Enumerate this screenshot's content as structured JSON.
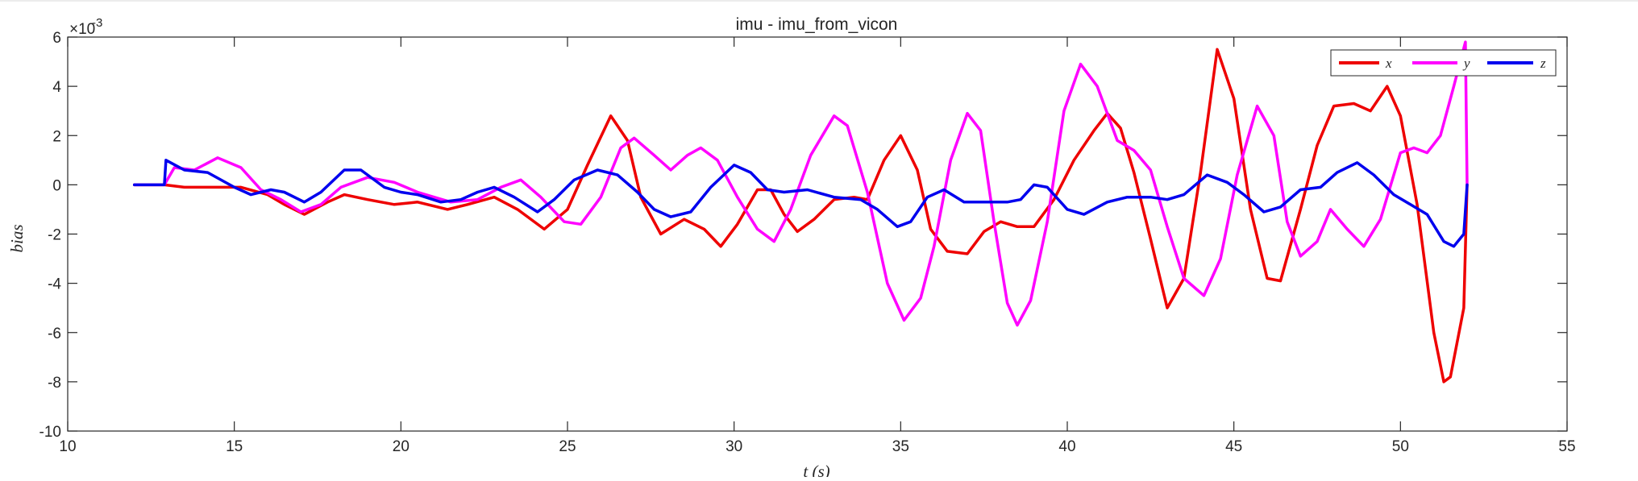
{
  "chart_data": {
    "type": "line",
    "title": "imu - imu_from_vicon",
    "xlabel": "t (s)",
    "ylabel": "bias",
    "y_exponent_label": "×10",
    "y_exponent_power": "-3",
    "xlim": [
      10,
      55
    ],
    "ylim": [
      -10,
      6
    ],
    "y_scale_factor": 0.001,
    "x_ticks": [
      10,
      15,
      20,
      25,
      30,
      35,
      40,
      45,
      50,
      55
    ],
    "y_ticks": [
      -10,
      -8,
      -6,
      -4,
      -2,
      0,
      2,
      4,
      6
    ],
    "grid": false,
    "legend": {
      "position": "top-right",
      "entries": [
        "x",
        "y",
        "z"
      ]
    },
    "series": [
      {
        "name": "x",
        "color": "#ee0000",
        "points": [
          [
            12,
            0
          ],
          [
            12.9,
            0
          ],
          [
            13.5,
            -0.1
          ],
          [
            14.5,
            -0.1
          ],
          [
            15.2,
            -0.1
          ],
          [
            16,
            -0.4
          ],
          [
            16.5,
            -0.8
          ],
          [
            17.1,
            -1.2
          ],
          [
            17.8,
            -0.7
          ],
          [
            18.3,
            -0.4
          ],
          [
            19,
            -0.6
          ],
          [
            19.8,
            -0.8
          ],
          [
            20.5,
            -0.7
          ],
          [
            21.4,
            -1.0
          ],
          [
            22,
            -0.8
          ],
          [
            22.8,
            -0.5
          ],
          [
            23.5,
            -1.0
          ],
          [
            24.3,
            -1.8
          ],
          [
            25,
            -1.0
          ],
          [
            25.6,
            0.8
          ],
          [
            26.3,
            2.8
          ],
          [
            26.8,
            1.8
          ],
          [
            27.2,
            -0.5
          ],
          [
            27.8,
            -2.0
          ],
          [
            28.5,
            -1.4
          ],
          [
            29.1,
            -1.8
          ],
          [
            29.6,
            -2.5
          ],
          [
            30.1,
            -1.6
          ],
          [
            30.7,
            -0.2
          ],
          [
            31.1,
            -0.2
          ],
          [
            31.5,
            -1.2
          ],
          [
            31.9,
            -1.9
          ],
          [
            32.4,
            -1.4
          ],
          [
            33,
            -0.6
          ],
          [
            33.6,
            -0.5
          ],
          [
            34,
            -0.6
          ],
          [
            34.5,
            1.0
          ],
          [
            35,
            2.0
          ],
          [
            35.5,
            0.6
          ],
          [
            35.9,
            -1.8
          ],
          [
            36.4,
            -2.7
          ],
          [
            37,
            -2.8
          ],
          [
            37.5,
            -1.9
          ],
          [
            38,
            -1.5
          ],
          [
            38.5,
            -1.7
          ],
          [
            39,
            -1.7
          ],
          [
            39.6,
            -0.6
          ],
          [
            40.2,
            1.0
          ],
          [
            40.8,
            2.2
          ],
          [
            41.2,
            2.9
          ],
          [
            41.6,
            2.3
          ],
          [
            42,
            0.5
          ],
          [
            42.5,
            -2.2
          ],
          [
            43,
            -5.0
          ],
          [
            43.5,
            -3.8
          ],
          [
            44,
            0.5
          ],
          [
            44.5,
            5.5
          ],
          [
            45,
            3.5
          ],
          [
            45.5,
            -1.0
          ],
          [
            46,
            -3.8
          ],
          [
            46.4,
            -3.9
          ],
          [
            47,
            -1.0
          ],
          [
            47.5,
            1.6
          ],
          [
            48,
            3.2
          ],
          [
            48.6,
            3.3
          ],
          [
            49.1,
            3.0
          ],
          [
            49.6,
            4.0
          ],
          [
            50,
            2.8
          ],
          [
            50.5,
            -0.8
          ],
          [
            51,
            -6.0
          ],
          [
            51.3,
            -8.0
          ],
          [
            51.5,
            -7.8
          ],
          [
            51.9,
            -5.0
          ],
          [
            52,
            0
          ]
        ]
      },
      {
        "name": "y",
        "color": "#ff00ff",
        "points": [
          [
            12,
            0
          ],
          [
            12.9,
            0
          ],
          [
            13.2,
            0.7
          ],
          [
            13.8,
            0.6
          ],
          [
            14.5,
            1.1
          ],
          [
            15.2,
            0.7
          ],
          [
            15.8,
            -0.2
          ],
          [
            16.4,
            -0.6
          ],
          [
            17,
            -1.1
          ],
          [
            17.6,
            -0.8
          ],
          [
            18.2,
            -0.1
          ],
          [
            19,
            0.3
          ],
          [
            19.8,
            0.1
          ],
          [
            20.5,
            -0.3
          ],
          [
            21.5,
            -0.7
          ],
          [
            22.3,
            -0.6
          ],
          [
            23,
            -0.1
          ],
          [
            23.6,
            0.2
          ],
          [
            24.2,
            -0.5
          ],
          [
            24.9,
            -1.5
          ],
          [
            25.4,
            -1.6
          ],
          [
            26,
            -0.5
          ],
          [
            26.6,
            1.5
          ],
          [
            27,
            1.9
          ],
          [
            27.6,
            1.2
          ],
          [
            28.1,
            0.6
          ],
          [
            28.6,
            1.2
          ],
          [
            29,
            1.5
          ],
          [
            29.5,
            1.0
          ],
          [
            30.1,
            -0.5
          ],
          [
            30.7,
            -1.8
          ],
          [
            31.2,
            -2.3
          ],
          [
            31.7,
            -1.0
          ],
          [
            32.3,
            1.2
          ],
          [
            33,
            2.8
          ],
          [
            33.4,
            2.4
          ],
          [
            34,
            -0.3
          ],
          [
            34.6,
            -4.0
          ],
          [
            35.1,
            -5.5
          ],
          [
            35.6,
            -4.6
          ],
          [
            36,
            -2.5
          ],
          [
            36.5,
            1.0
          ],
          [
            37,
            2.9
          ],
          [
            37.4,
            2.2
          ],
          [
            37.8,
            -1.5
          ],
          [
            38.2,
            -4.8
          ],
          [
            38.5,
            -5.7
          ],
          [
            38.9,
            -4.7
          ],
          [
            39.4,
            -1.5
          ],
          [
            39.9,
            3.0
          ],
          [
            40.4,
            4.9
          ],
          [
            40.9,
            4.0
          ],
          [
            41.5,
            1.8
          ],
          [
            42,
            1.4
          ],
          [
            42.5,
            0.6
          ],
          [
            43,
            -1.7
          ],
          [
            43.5,
            -3.8
          ],
          [
            44.1,
            -4.5
          ],
          [
            44.6,
            -3.0
          ],
          [
            45.1,
            0.4
          ],
          [
            45.7,
            3.2
          ],
          [
            46.2,
            2.0
          ],
          [
            46.6,
            -1.5
          ],
          [
            47,
            -2.9
          ],
          [
            47.5,
            -2.3
          ],
          [
            47.9,
            -1.0
          ],
          [
            48.4,
            -1.8
          ],
          [
            48.9,
            -2.5
          ],
          [
            49.4,
            -1.4
          ],
          [
            50,
            1.3
          ],
          [
            50.4,
            1.5
          ],
          [
            50.8,
            1.3
          ],
          [
            51.2,
            2.0
          ],
          [
            51.6,
            4.0
          ],
          [
            51.95,
            5.8
          ],
          [
            52,
            0
          ]
        ]
      },
      {
        "name": "z",
        "color": "#0000ee",
        "points": [
          [
            12,
            0
          ],
          [
            12.9,
            0
          ],
          [
            12.95,
            1.0
          ],
          [
            13.5,
            0.6
          ],
          [
            14.2,
            0.5
          ],
          [
            15,
            -0.1
          ],
          [
            15.5,
            -0.4
          ],
          [
            16.1,
            -0.2
          ],
          [
            16.5,
            -0.3
          ],
          [
            17.1,
            -0.7
          ],
          [
            17.6,
            -0.3
          ],
          [
            18.3,
            0.6
          ],
          [
            18.8,
            0.6
          ],
          [
            19.5,
            -0.1
          ],
          [
            20,
            -0.3
          ],
          [
            20.5,
            -0.4
          ],
          [
            21.2,
            -0.7
          ],
          [
            21.8,
            -0.6
          ],
          [
            22.3,
            -0.3
          ],
          [
            22.8,
            -0.1
          ],
          [
            23.4,
            -0.5
          ],
          [
            24.1,
            -1.1
          ],
          [
            24.6,
            -0.6
          ],
          [
            25.2,
            0.2
          ],
          [
            25.9,
            0.6
          ],
          [
            26.5,
            0.4
          ],
          [
            27.1,
            -0.3
          ],
          [
            27.6,
            -1.0
          ],
          [
            28.1,
            -1.3
          ],
          [
            28.7,
            -1.1
          ],
          [
            29.3,
            -0.1
          ],
          [
            30,
            0.8
          ],
          [
            30.5,
            0.5
          ],
          [
            31,
            -0.2
          ],
          [
            31.5,
            -0.3
          ],
          [
            32.2,
            -0.2
          ],
          [
            33,
            -0.5
          ],
          [
            33.8,
            -0.6
          ],
          [
            34.3,
            -1.0
          ],
          [
            34.9,
            -1.7
          ],
          [
            35.3,
            -1.5
          ],
          [
            35.8,
            -0.5
          ],
          [
            36.3,
            -0.2
          ],
          [
            36.9,
            -0.7
          ],
          [
            37.5,
            -0.7
          ],
          [
            38.2,
            -0.7
          ],
          [
            38.6,
            -0.6
          ],
          [
            39,
            0.0
          ],
          [
            39.4,
            -0.1
          ],
          [
            40,
            -1.0
          ],
          [
            40.5,
            -1.2
          ],
          [
            41.2,
            -0.7
          ],
          [
            41.8,
            -0.5
          ],
          [
            42.5,
            -0.5
          ],
          [
            43,
            -0.6
          ],
          [
            43.5,
            -0.4
          ],
          [
            44.2,
            0.4
          ],
          [
            44.8,
            0.1
          ],
          [
            45.3,
            -0.4
          ],
          [
            45.9,
            -1.1
          ],
          [
            46.4,
            -0.9
          ],
          [
            47,
            -0.2
          ],
          [
            47.6,
            -0.1
          ],
          [
            48.1,
            0.5
          ],
          [
            48.7,
            0.9
          ],
          [
            49.2,
            0.4
          ],
          [
            49.8,
            -0.4
          ],
          [
            50.3,
            -0.8
          ],
          [
            50.8,
            -1.2
          ],
          [
            51.3,
            -2.3
          ],
          [
            51.6,
            -2.5
          ],
          [
            51.9,
            -2.0
          ],
          [
            52,
            0
          ]
        ]
      }
    ]
  }
}
